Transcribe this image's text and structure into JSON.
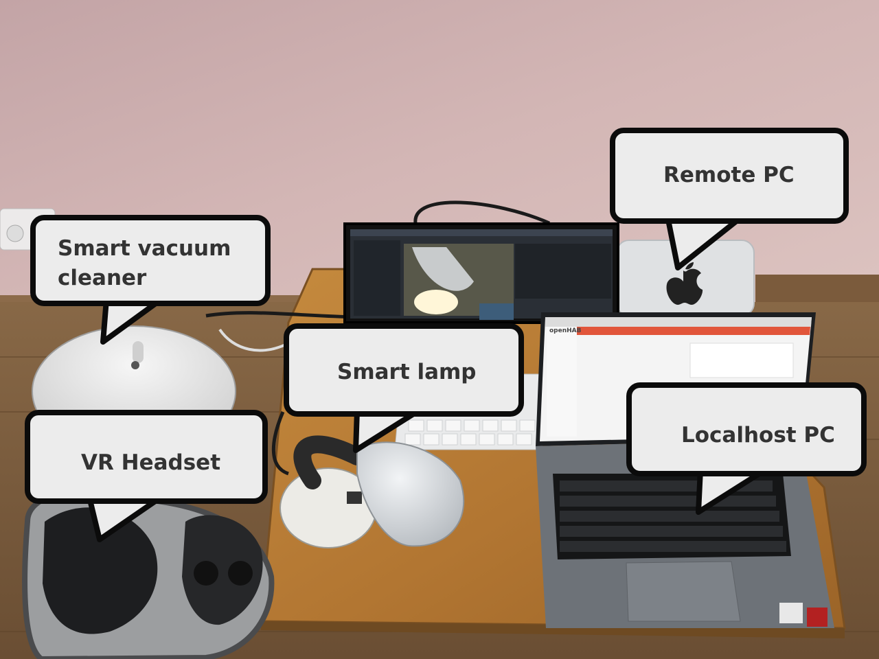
{
  "labels": {
    "remote_pc": "Remote PC",
    "vacuum": "Smart vacuum\ncleaner",
    "lamp": "Smart lamp",
    "vr_headset": "VR Headset",
    "localhost_pc": "Localhost PC"
  },
  "screen_text": {
    "openhab_logo": "openHAB"
  },
  "colors": {
    "wall": "#cfb2b2",
    "floor": "#7f6244",
    "desk": "#b47c37",
    "bubble_fill": "#ececec",
    "bubble_border": "#0b0b0b",
    "label_text": "#333333",
    "openhab_accent": "#e1553a"
  }
}
